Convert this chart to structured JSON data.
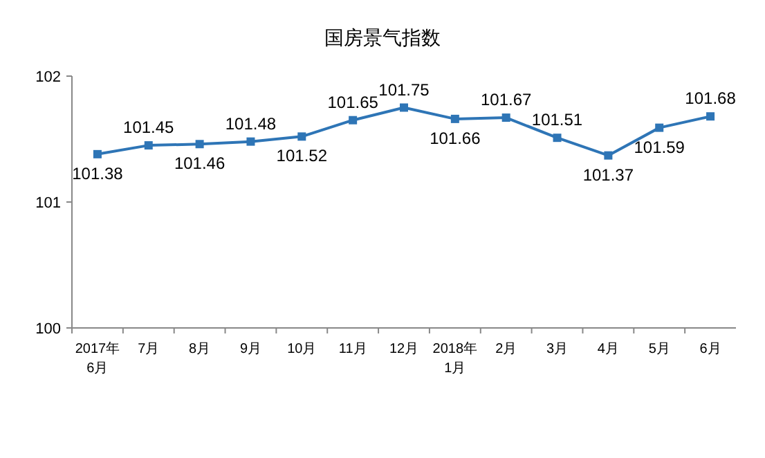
{
  "chart_data": {
    "type": "line",
    "title": "国房景气指数",
    "categories": [
      "2017年\n6月",
      "7月",
      "8月",
      "9月",
      "10月",
      "11月",
      "12月",
      "2018年\n1月",
      "2月",
      "3月",
      "4月",
      "5月",
      "6月"
    ],
    "series": [
      {
        "color": "#2e75b6",
        "values": [
          101.38,
          101.45,
          101.46,
          101.48,
          101.52,
          101.65,
          101.75,
          101.66,
          101.67,
          101.51,
          101.37,
          101.59,
          101.68
        ]
      }
    ],
    "ylim": [
      100,
      102
    ],
    "yticks": [
      100,
      101,
      102
    ],
    "grid": false,
    "marker": "square",
    "line_style": "solid",
    "data_labels": true
  }
}
